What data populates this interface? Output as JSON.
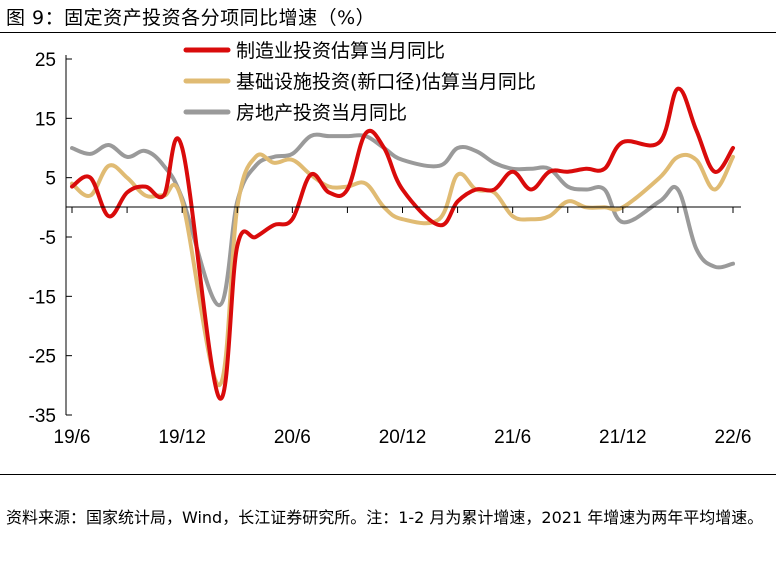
{
  "figure": {
    "title": "图 9：固定资产投资各分项同比增速（%）",
    "source": "资料来源：国家统计局，Wind，长江证券研究所。注：1-2 月为累计增速，2021 年增速为两年平均增速。"
  },
  "chart_data": {
    "type": "line",
    "x": [
      "2019-06",
      "2019-07",
      "2019-08",
      "2019-09",
      "2019-10",
      "2019-11",
      "2019-12",
      "2020-02",
      "2020-03",
      "2020-04",
      "2020-05",
      "2020-06",
      "2020-07",
      "2020-08",
      "2020-09",
      "2020-10",
      "2020-11",
      "2020-12",
      "2021-02",
      "2021-03",
      "2021-04",
      "2021-05",
      "2021-06",
      "2021-07",
      "2021-08",
      "2021-09",
      "2021-10",
      "2021-11",
      "2021-12",
      "2022-02",
      "2022-03",
      "2022-04",
      "2022-05",
      "2022-06"
    ],
    "x_tick_labels": [
      "19/6",
      "19/12",
      "20/6",
      "20/12",
      "21/6",
      "21/12",
      "22/6"
    ],
    "ylim": [
      -35,
      25
    ],
    "y_ticks": [
      25,
      15,
      5,
      -5,
      -15,
      -25,
      -35
    ],
    "grid": false,
    "legend_position": "top",
    "series": [
      {
        "name": "制造业投资估算当月同比",
        "color": "#d90b0b",
        "values": [
          3.5,
          5.0,
          -1.5,
          2.5,
          3.5,
          2.0,
          10.0,
          -32.0,
          -6.5,
          -5.0,
          -3.0,
          -2.0,
          5.5,
          2.5,
          3.0,
          12.5,
          10.0,
          3.0,
          -3.0,
          1.0,
          3.0,
          3.0,
          6.0,
          3.0,
          6.0,
          6.0,
          6.5,
          6.5,
          11.0,
          11.0,
          20.0,
          13.0,
          6.0,
          10.0
        ]
      },
      {
        "name": "基础设施投资(新口径)估算当月同比",
        "color": "#e0bb73",
        "values": [
          4.0,
          2.0,
          7.0,
          5.0,
          2.0,
          2.0,
          1.0,
          -30.0,
          0.0,
          8.5,
          7.5,
          8.0,
          5.5,
          3.5,
          3.5,
          4.0,
          0.0,
          -2.0,
          -2.0,
          5.5,
          3.0,
          2.5,
          -1.5,
          -2.0,
          -1.5,
          1.0,
          0.0,
          0.0,
          0.0,
          5.0,
          8.5,
          8.0,
          3.0,
          8.5
        ]
      },
      {
        "name": "房地产投资当月同比",
        "color": "#9a9a9a",
        "values": [
          10.0,
          9.0,
          10.5,
          8.5,
          9.5,
          7.0,
          1.5,
          -16.5,
          1.0,
          7.0,
          8.5,
          9.0,
          12.0,
          12.0,
          12.0,
          12.0,
          10.0,
          8.0,
          7.0,
          10.0,
          9.5,
          7.5,
          6.5,
          6.5,
          6.5,
          3.5,
          3.0,
          3.0,
          -2.5,
          1.0,
          3.0,
          -7.0,
          -10.0,
          -9.5
        ]
      }
    ]
  }
}
